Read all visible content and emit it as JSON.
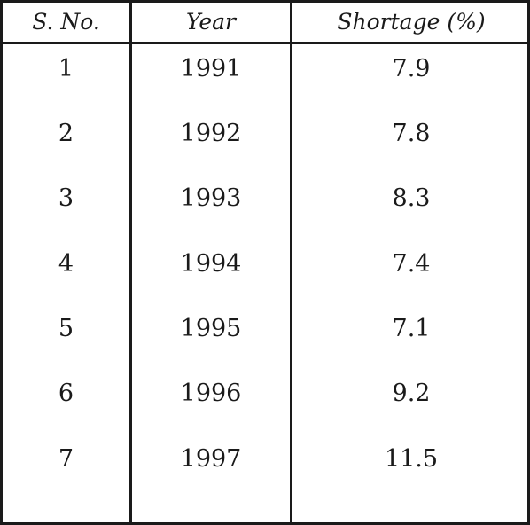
{
  "table": {
    "headers": [
      "S. No.",
      "Year",
      "Shortage (%)"
    ],
    "rows": [
      [
        "1",
        "1991",
        "7.9"
      ],
      [
        "2",
        "1992",
        "7.8"
      ],
      [
        "3",
        "1993",
        "8.3"
      ],
      [
        "4",
        "1994",
        "7.4"
      ],
      [
        "5",
        "1995",
        "7.1"
      ],
      [
        "6",
        "1996",
        "9.2"
      ],
      [
        "7",
        "1997",
        "11.5"
      ]
    ]
  }
}
